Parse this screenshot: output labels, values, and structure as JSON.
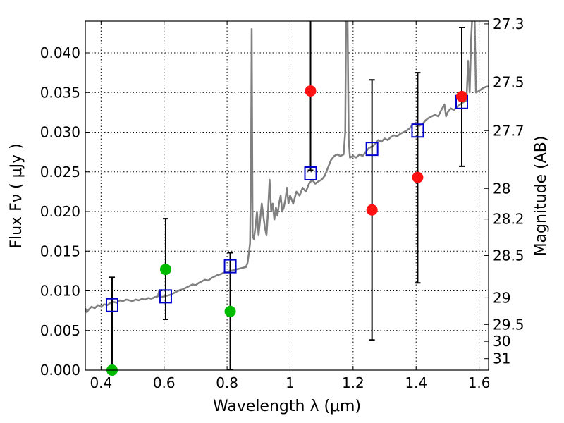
{
  "chart_data": {
    "type": "scatter",
    "xlabel": "Wavelength  λ (μm)",
    "ylabel": "Flux  Fν ( μJy )",
    "ylabel_right": "Magnitude (AB)",
    "xlim": [
      0.35,
      1.63
    ],
    "ylim": [
      0.0,
      0.044
    ],
    "grid": true,
    "x_ticks": [
      0.4,
      0.6,
      0.8,
      1.0,
      1.2,
      1.4,
      1.6
    ],
    "x_tick_labels": [
      "0.4",
      "0.6",
      "0.8",
      "1",
      "1.2",
      "1.4",
      "1.6"
    ],
    "y_ticks": [
      0.0,
      0.005,
      0.01,
      0.015,
      0.02,
      0.025,
      0.03,
      0.035,
      0.04
    ],
    "y_tick_labels": [
      "0.000",
      "0.005",
      "0.010",
      "0.015",
      "0.020",
      "0.025",
      "0.030",
      "0.035",
      "0.040"
    ],
    "right_ticks": [
      {
        "flux": 0.04365,
        "label": "27.3"
      },
      {
        "flux": 0.03631,
        "label": "27.5"
      },
      {
        "flux": 0.0302,
        "label": "27.7"
      },
      {
        "flux": 0.02291,
        "label": "28"
      },
      {
        "flux": 0.01905,
        "label": "28.2"
      },
      {
        "flux": 0.01445,
        "label": "28.5"
      },
      {
        "flux": 0.00912,
        "label": "29"
      },
      {
        "flux": 0.00575,
        "label": "29.5"
      },
      {
        "flux": 0.00363,
        "label": "30"
      },
      {
        "flux": 0.00145,
        "label": "31"
      }
    ],
    "series": [
      {
        "kind": "line",
        "color": "#808080",
        "points": [
          [
            0.35,
            0.0078
          ],
          [
            0.355,
            0.0073
          ],
          [
            0.36,
            0.0076
          ],
          [
            0.37,
            0.008
          ],
          [
            0.38,
            0.0078
          ],
          [
            0.39,
            0.0082
          ],
          [
            0.4,
            0.008
          ],
          [
            0.41,
            0.0083
          ],
          [
            0.42,
            0.0082
          ],
          [
            0.43,
            0.0085
          ],
          [
            0.44,
            0.0086
          ],
          [
            0.45,
            0.0085
          ],
          [
            0.46,
            0.0088
          ],
          [
            0.47,
            0.0087
          ],
          [
            0.48,
            0.0089
          ],
          [
            0.49,
            0.0088
          ],
          [
            0.5,
            0.0087
          ],
          [
            0.51,
            0.0089
          ],
          [
            0.52,
            0.0088
          ],
          [
            0.53,
            0.009
          ],
          [
            0.54,
            0.0089
          ],
          [
            0.55,
            0.0091
          ],
          [
            0.56,
            0.009
          ],
          [
            0.57,
            0.0092
          ],
          [
            0.58,
            0.0093
          ],
          [
            0.585,
            0.0101
          ],
          [
            0.59,
            0.0092
          ],
          [
            0.6,
            0.0093
          ],
          [
            0.61,
            0.0094
          ],
          [
            0.62,
            0.0095
          ],
          [
            0.63,
            0.0097
          ],
          [
            0.64,
            0.0099
          ],
          [
            0.65,
            0.0101
          ],
          [
            0.66,
            0.0102
          ],
          [
            0.67,
            0.0104
          ],
          [
            0.68,
            0.0106
          ],
          [
            0.69,
            0.0108
          ],
          [
            0.7,
            0.0107
          ],
          [
            0.71,
            0.011
          ],
          [
            0.72,
            0.0112
          ],
          [
            0.73,
            0.0114
          ],
          [
            0.74,
            0.0113
          ],
          [
            0.75,
            0.0116
          ],
          [
            0.76,
            0.0118
          ],
          [
            0.77,
            0.012
          ],
          [
            0.78,
            0.0121
          ],
          [
            0.79,
            0.0123
          ],
          [
            0.8,
            0.0124
          ],
          [
            0.81,
            0.0125
          ],
          [
            0.82,
            0.0126
          ],
          [
            0.83,
            0.0127
          ],
          [
            0.84,
            0.0128
          ],
          [
            0.85,
            0.0129
          ],
          [
            0.86,
            0.013
          ],
          [
            0.865,
            0.0135
          ],
          [
            0.87,
            0.015
          ],
          [
            0.873,
            0.016
          ],
          [
            0.876,
            0.026
          ],
          [
            0.878,
            0.043
          ],
          [
            0.881,
            0.017
          ],
          [
            0.885,
            0.0165
          ],
          [
            0.89,
            0.018
          ],
          [
            0.895,
            0.02
          ],
          [
            0.9,
            0.017
          ],
          [
            0.905,
            0.019
          ],
          [
            0.91,
            0.021
          ],
          [
            0.915,
            0.0195
          ],
          [
            0.92,
            0.018
          ],
          [
            0.925,
            0.017
          ],
          [
            0.93,
            0.02
          ],
          [
            0.935,
            0.024
          ],
          [
            0.94,
            0.02
          ],
          [
            0.945,
            0.021
          ],
          [
            0.95,
            0.019
          ],
          [
            0.955,
            0.0205
          ],
          [
            0.96,
            0.0195
          ],
          [
            0.965,
            0.021
          ],
          [
            0.97,
            0.022
          ],
          [
            0.975,
            0.02
          ],
          [
            0.98,
            0.0205
          ],
          [
            0.985,
            0.0215
          ],
          [
            0.99,
            0.023
          ],
          [
            0.995,
            0.021
          ],
          [
            1.0,
            0.022
          ],
          [
            1.01,
            0.021
          ],
          [
            1.02,
            0.0225
          ],
          [
            1.03,
            0.022
          ],
          [
            1.04,
            0.023
          ],
          [
            1.05,
            0.0225
          ],
          [
            1.06,
            0.0235
          ],
          [
            1.07,
            0.024
          ],
          [
            1.08,
            0.0235
          ],
          [
            1.09,
            0.0238
          ],
          [
            1.1,
            0.024
          ],
          [
            1.11,
            0.0245
          ],
          [
            1.12,
            0.0255
          ],
          [
            1.13,
            0.0265
          ],
          [
            1.14,
            0.027
          ],
          [
            1.15,
            0.0272
          ],
          [
            1.16,
            0.027
          ],
          [
            1.17,
            0.0272
          ],
          [
            1.175,
            0.03
          ],
          [
            1.178,
            0.046
          ],
          [
            1.182,
            0.046
          ],
          [
            1.186,
            0.029
          ],
          [
            1.19,
            0.0268
          ],
          [
            1.2,
            0.027
          ],
          [
            1.21,
            0.0268
          ],
          [
            1.22,
            0.0272
          ],
          [
            1.23,
            0.027
          ],
          [
            1.24,
            0.0275
          ],
          [
            1.25,
            0.028
          ],
          [
            1.26,
            0.0282
          ],
          [
            1.27,
            0.0285
          ],
          [
            1.28,
            0.029
          ],
          [
            1.29,
            0.0288
          ],
          [
            1.3,
            0.0292
          ],
          [
            1.31,
            0.029
          ],
          [
            1.32,
            0.0294
          ],
          [
            1.33,
            0.0296
          ],
          [
            1.34,
            0.0295
          ],
          [
            1.35,
            0.0298
          ],
          [
            1.36,
            0.03
          ],
          [
            1.37,
            0.0302
          ],
          [
            1.38,
            0.0305
          ],
          [
            1.39,
            0.031
          ],
          [
            1.4,
            0.0312
          ],
          [
            1.41,
            0.0308
          ],
          [
            1.42,
            0.031
          ],
          [
            1.43,
            0.0315
          ],
          [
            1.44,
            0.0318
          ],
          [
            1.45,
            0.032
          ],
          [
            1.46,
            0.0322
          ],
          [
            1.47,
            0.032
          ],
          [
            1.48,
            0.0328
          ],
          [
            1.49,
            0.0335
          ],
          [
            1.495,
            0.032
          ],
          [
            1.5,
            0.0325
          ],
          [
            1.51,
            0.033
          ],
          [
            1.52,
            0.0328
          ],
          [
            1.53,
            0.0332
          ],
          [
            1.54,
            0.0335
          ],
          [
            1.55,
            0.0338
          ],
          [
            1.56,
            0.034
          ],
          [
            1.565,
            0.039
          ],
          [
            1.57,
            0.035
          ],
          [
            1.575,
            0.042
          ],
          [
            1.58,
            0.046
          ],
          [
            1.585,
            0.046
          ],
          [
            1.59,
            0.035
          ],
          [
            1.6,
            0.0352
          ],
          [
            1.61,
            0.0355
          ],
          [
            1.62,
            0.0357
          ],
          [
            1.63,
            0.0358
          ]
        ]
      },
      {
        "kind": "errorbar",
        "color": "#000000",
        "bars": [
          {
            "x": 0.435,
            "lo": 0.0,
            "hi": 0.0117
          },
          {
            "x": 0.605,
            "lo": 0.0064,
            "hi": 0.0191
          },
          {
            "x": 0.81,
            "lo": 0.0,
            "hi": 0.0148
          },
          {
            "x": 1.065,
            "lo": 0.0252,
            "hi": 0.045
          },
          {
            "x": 1.26,
            "lo": 0.0038,
            "hi": 0.0366
          },
          {
            "x": 1.405,
            "lo": 0.011,
            "hi": 0.0375
          },
          {
            "x": 1.545,
            "lo": 0.0257,
            "hi": 0.0432
          }
        ]
      },
      {
        "kind": "markers",
        "shape": "open-square",
        "color": "#0000cc",
        "points": [
          [
            0.435,
            0.0082
          ],
          [
            0.605,
            0.0093
          ],
          [
            0.81,
            0.0131
          ],
          [
            1.065,
            0.0248
          ],
          [
            1.26,
            0.0279
          ],
          [
            1.405,
            0.0302
          ],
          [
            1.545,
            0.0338
          ]
        ]
      },
      {
        "kind": "markers",
        "shape": "circle",
        "color": "#00bb00",
        "points": [
          [
            0.435,
            0.0
          ],
          [
            0.605,
            0.0127
          ],
          [
            0.81,
            0.0074
          ]
        ]
      },
      {
        "kind": "markers",
        "shape": "circle",
        "color": "#ff1111",
        "points": [
          [
            1.065,
            0.0352
          ],
          [
            1.26,
            0.0202
          ],
          [
            1.405,
            0.0243
          ],
          [
            1.545,
            0.0345
          ]
        ]
      }
    ]
  }
}
